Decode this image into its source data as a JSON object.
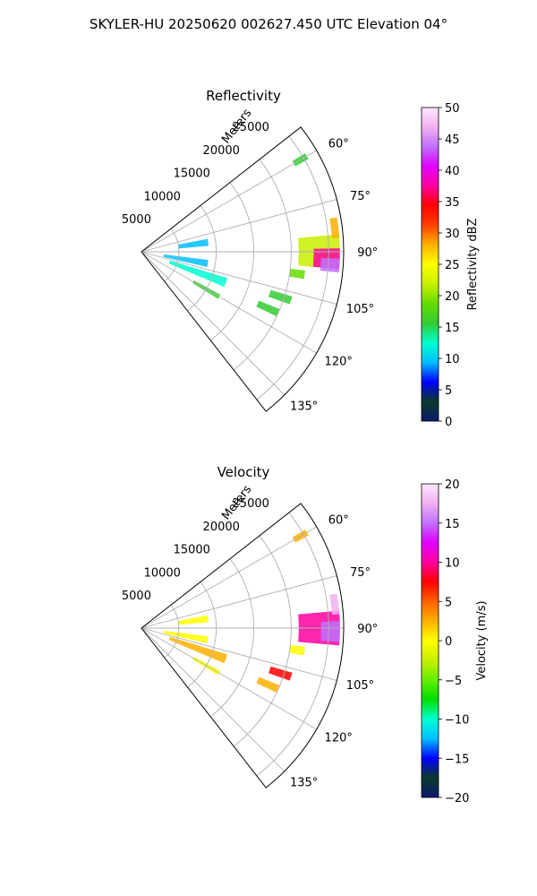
{
  "figure_title": "SKYLER-HU  20250620  002627.450 UTC Elevation 04°",
  "chart_data": [
    {
      "type": "polar-sector",
      "title": "Reflectivity",
      "radial_axis_label": "Meters",
      "r_ticks": [
        "5000",
        "10000",
        "15000",
        "20000",
        "25000"
      ],
      "r_values": [
        5000,
        10000,
        15000,
        20000,
        25000
      ],
      "r_max": 27000,
      "theta_range_deg": [
        52,
        142
      ],
      "theta_ticks": [
        "60°",
        "75°",
        "90°",
        "105°",
        "120°",
        "135°"
      ],
      "theta_values": [
        60,
        75,
        90,
        105,
        120,
        135
      ],
      "grid": true,
      "colorbar": {
        "label": "Reflectivity dBZ",
        "ticks": [
          "0",
          "5",
          "10",
          "15",
          "20",
          "25",
          "30",
          "35",
          "40",
          "45",
          "50"
        ],
        "range": [
          0,
          50
        ],
        "stops": [
          "#0c1a6e",
          "#0a3a2a",
          "#0000ff",
          "#00bfff",
          "#00ffd0",
          "#33cc33",
          "#66dd00",
          "#c8f000",
          "#ffff00",
          "#ffb000",
          "#ff4000",
          "#ff0000",
          "#ff00a0",
          "#e000ff",
          "#c070ff",
          "#f0b0f0",
          "#ffe8ff"
        ]
      },
      "echoes": [
        {
          "theta": 90,
          "r_from": 21000,
          "r_to": 26500,
          "half_width_deg": 5,
          "value": 22
        },
        {
          "theta": 92,
          "r_from": 23000,
          "r_to": 26500,
          "half_width_deg": 3,
          "value": 37
        },
        {
          "theta": 94,
          "r_from": 24000,
          "r_to": 26500,
          "half_width_deg": 2,
          "value": 43
        },
        {
          "theta": 83,
          "r_from": 25500,
          "r_to": 26500,
          "half_width_deg": 3,
          "value": 28
        },
        {
          "theta": 98,
          "r_from": 20000,
          "r_to": 22000,
          "half_width_deg": 1.5,
          "value": 18
        },
        {
          "theta": 108,
          "r_from": 18000,
          "r_to": 21000,
          "half_width_deg": 1.5,
          "value": 17
        },
        {
          "theta": 114,
          "r_from": 17000,
          "r_to": 20000,
          "half_width_deg": 1.5,
          "value": 16
        },
        {
          "theta": 60,
          "r_from": 23500,
          "r_to": 25500,
          "half_width_deg": 1,
          "value": 16
        },
        {
          "theta": 100,
          "r_from": 3000,
          "r_to": 9000,
          "half_width_deg": 3,
          "value": 10
        },
        {
          "theta": 82,
          "r_from": 5000,
          "r_to": 9000,
          "half_width_deg": 3,
          "value": 8
        },
        {
          "theta": 110,
          "r_from": 4000,
          "r_to": 12000,
          "half_width_deg": 3,
          "value": 12
        },
        {
          "theta": 120,
          "r_from": 8000,
          "r_to": 12000,
          "half_width_deg": 1.5,
          "value": 16
        }
      ]
    },
    {
      "type": "polar-sector",
      "title": "Velocity",
      "radial_axis_label": "Meters",
      "r_ticks": [
        "5000",
        "10000",
        "15000",
        "20000",
        "25000"
      ],
      "r_values": [
        5000,
        10000,
        15000,
        20000,
        25000
      ],
      "r_max": 27000,
      "theta_range_deg": [
        52,
        142
      ],
      "theta_ticks": [
        "60°",
        "75°",
        "90°",
        "105°",
        "120°",
        "135°"
      ],
      "theta_values": [
        60,
        75,
        90,
        105,
        120,
        135
      ],
      "grid": true,
      "colorbar": {
        "label": "Velocity (m/s)",
        "ticks": [
          "−20",
          "−15",
          "−10",
          "−5",
          "0",
          "5",
          "10",
          "15",
          "20"
        ],
        "range": [
          -20,
          20
        ],
        "stops": [
          "#0c1a6e",
          "#0a3a2a",
          "#0000ff",
          "#00bfff",
          "#00ffd0",
          "#00dd00",
          "#66ee00",
          "#c8f000",
          "#ffff00",
          "#ffb000",
          "#ff6000",
          "#ff0000",
          "#ff00a0",
          "#e000ff",
          "#c070ff",
          "#f0b0f0",
          "#ffe8ff"
        ]
      },
      "echoes": [
        {
          "theta": 90,
          "r_from": 21000,
          "r_to": 26500,
          "half_width_deg": 5,
          "value": 10
        },
        {
          "theta": 91,
          "r_from": 24000,
          "r_to": 26500,
          "half_width_deg": 3,
          "value": 15
        },
        {
          "theta": 83,
          "r_from": 25500,
          "r_to": 26500,
          "half_width_deg": 3,
          "value": 17
        },
        {
          "theta": 98,
          "r_from": 20000,
          "r_to": 22000,
          "half_width_deg": 1.5,
          "value": 1
        },
        {
          "theta": 108,
          "r_from": 18000,
          "r_to": 21000,
          "half_width_deg": 1.5,
          "value": 7
        },
        {
          "theta": 114,
          "r_from": 17000,
          "r_to": 20000,
          "half_width_deg": 1.5,
          "value": 2
        },
        {
          "theta": 60,
          "r_from": 23500,
          "r_to": 25500,
          "half_width_deg": 1,
          "value": 2
        },
        {
          "theta": 100,
          "r_from": 3000,
          "r_to": 9000,
          "half_width_deg": 3,
          "value": 1
        },
        {
          "theta": 82,
          "r_from": 5000,
          "r_to": 9000,
          "half_width_deg": 3,
          "value": 1
        },
        {
          "theta": 110,
          "r_from": 4000,
          "r_to": 12000,
          "half_width_deg": 3,
          "value": 2
        },
        {
          "theta": 120,
          "r_from": 8000,
          "r_to": 12000,
          "half_width_deg": 1.5,
          "value": 1
        }
      ]
    }
  ]
}
